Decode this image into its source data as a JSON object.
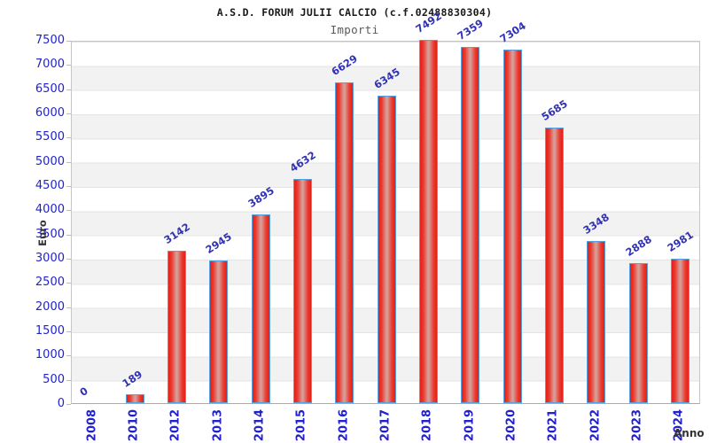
{
  "chart_data": {
    "type": "bar",
    "title": "A.S.D. FORUM JULII CALCIO (c.f.02488830304)",
    "subtitle": "Importi",
    "xlabel": "Anno",
    "ylabel": "Euro",
    "categories": [
      "2008",
      "2010",
      "2012",
      "2013",
      "2014",
      "2015",
      "2016",
      "2017",
      "2018",
      "2019",
      "2020",
      "2021",
      "2022",
      "2023",
      "2024"
    ],
    "values": [
      0,
      189,
      3142,
      2945,
      3895,
      4632,
      6629,
      6345,
      7492,
      7359,
      7304,
      5685,
      3348,
      2888,
      2981
    ],
    "ylim": [
      0,
      7500
    ],
    "ytick_step": 500,
    "yticks": [
      7500,
      7000,
      6500,
      6000,
      5500,
      5000,
      4500,
      4000,
      3500,
      3000,
      2500,
      2000,
      1500,
      1000,
      500,
      0
    ],
    "grid": "horizontal alternating bands, light gray on white",
    "legend": "none",
    "value_labels": "shown above each bar, rotated, blue"
  },
  "colors": {
    "axis_label_blue": "#2222cc",
    "value_label_blue": "#3232b4",
    "bar_red_edge": "#e32016",
    "bar_red_inner": "#ea3b30",
    "bar_center_light": "#d79d98",
    "bar_border_blue": "#58a0dd",
    "band_gray": "#f2f2f3",
    "gridline_gray": "#e4e4e6",
    "title_color": "#1a1a1a",
    "subtitle_gray": "#5a5a5a",
    "axis_title_color": "#333333"
  }
}
